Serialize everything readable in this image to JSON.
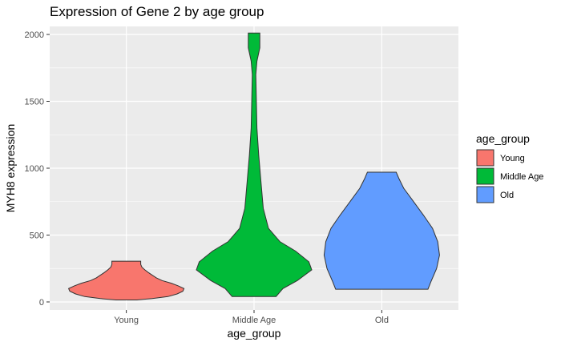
{
  "chart_data": {
    "type": "violin",
    "title": "Expression of Gene 2 by age group",
    "xlabel": "age_group",
    "ylabel": "MYH8 expression",
    "categories": [
      "Young",
      "Middle Age",
      "Old"
    ],
    "ylim": [
      -60,
      2060
    ],
    "yticks": [
      0,
      500,
      1000,
      1500,
      2000
    ],
    "ytick_labels": [
      "0",
      "500",
      "1000",
      "1500",
      "2000"
    ],
    "grid": true,
    "legend": {
      "title": "age_group",
      "position": "right",
      "entries": [
        "Young",
        "Middle Age",
        "Old"
      ]
    },
    "series": [
      {
        "category": "Young",
        "color": "#F8766D",
        "min": 15,
        "max": 305,
        "profile": [
          [
            15,
            0.18
          ],
          [
            25,
            0.45
          ],
          [
            40,
            0.72
          ],
          [
            60,
            0.88
          ],
          [
            80,
            0.98
          ],
          [
            100,
            1.0
          ],
          [
            120,
            0.9
          ],
          [
            140,
            0.78
          ],
          [
            160,
            0.62
          ],
          [
            180,
            0.52
          ],
          [
            200,
            0.45
          ],
          [
            220,
            0.38
          ],
          [
            240,
            0.32
          ],
          [
            260,
            0.27
          ],
          [
            280,
            0.25
          ],
          [
            305,
            0.25
          ]
        ]
      },
      {
        "category": "Middle Age",
        "color": "#00BA38",
        "min": 40,
        "max": 2010,
        "profile": [
          [
            40,
            0.38
          ],
          [
            100,
            0.5
          ],
          [
            160,
            0.75
          ],
          [
            240,
            1.0
          ],
          [
            300,
            0.95
          ],
          [
            380,
            0.72
          ],
          [
            450,
            0.45
          ],
          [
            550,
            0.25
          ],
          [
            700,
            0.16
          ],
          [
            900,
            0.12
          ],
          [
            1100,
            0.08
          ],
          [
            1300,
            0.05
          ],
          [
            1500,
            0.04
          ],
          [
            1700,
            0.03
          ],
          [
            1800,
            0.05
          ],
          [
            1900,
            0.1
          ],
          [
            2010,
            0.1
          ]
        ]
      },
      {
        "category": "Old",
        "color": "#619CFF",
        "min": 95,
        "max": 970,
        "profile": [
          [
            95,
            0.8
          ],
          [
            150,
            0.85
          ],
          [
            250,
            0.95
          ],
          [
            350,
            1.0
          ],
          [
            450,
            0.97
          ],
          [
            550,
            0.88
          ],
          [
            650,
            0.72
          ],
          [
            750,
            0.55
          ],
          [
            850,
            0.38
          ],
          [
            920,
            0.3
          ],
          [
            970,
            0.25
          ]
        ]
      }
    ]
  }
}
